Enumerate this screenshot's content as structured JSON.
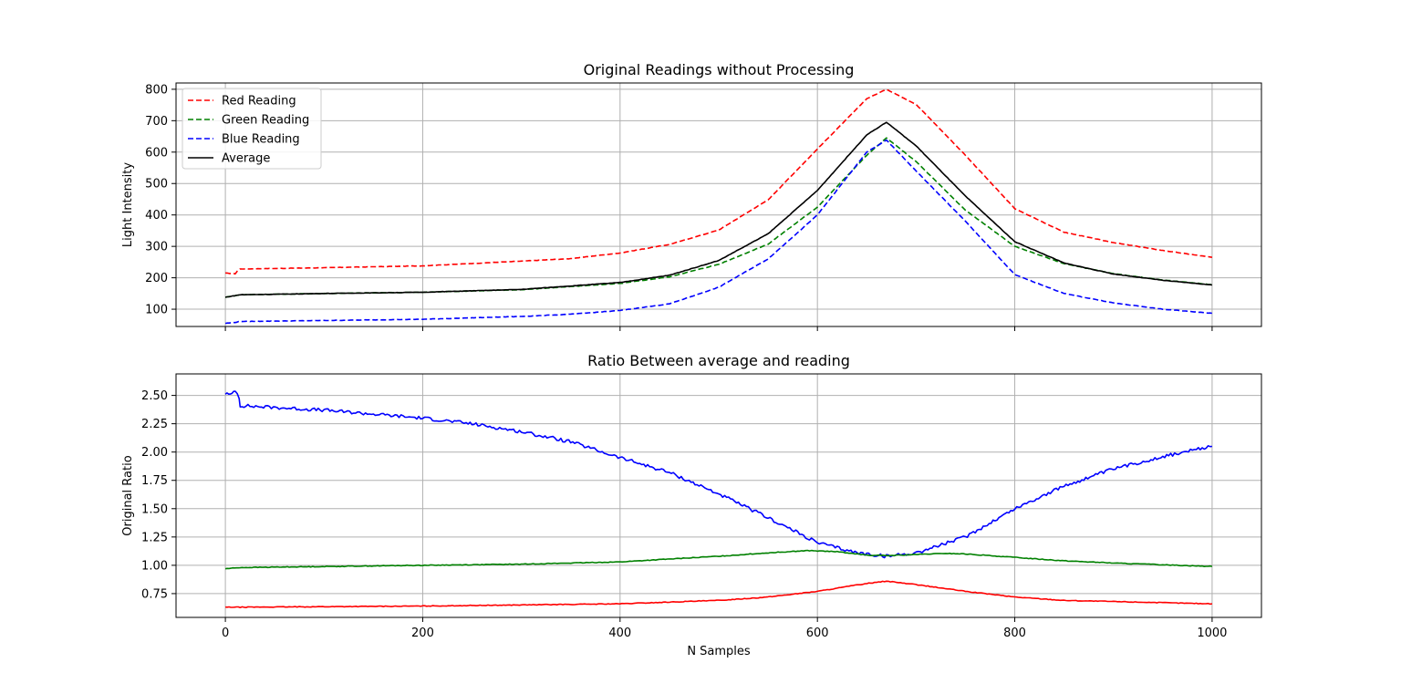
{
  "chart_data": [
    {
      "type": "line",
      "title": "Original Readings without Processing",
      "xlabel": "",
      "ylabel": "Light Intensity",
      "xlim": [
        -50,
        1050
      ],
      "ylim": [
        45,
        820
      ],
      "xticks": [
        0,
        200,
        400,
        600,
        800,
        1000
      ],
      "xtick_labels_visible": false,
      "yticks": [
        100,
        200,
        300,
        400,
        500,
        600,
        700,
        800
      ],
      "grid": true,
      "legend": "top-left",
      "series": [
        {
          "name": "Red Reading",
          "color": "#ff0000",
          "style": "dashed",
          "points": [
            [
              0,
              215
            ],
            [
              10,
              213
            ],
            [
              12,
              221
            ],
            [
              15,
              228
            ],
            [
              100,
              232
            ],
            [
              200,
              238
            ],
            [
              300,
              253
            ],
            [
              350,
              261
            ],
            [
              400,
              279
            ],
            [
              450,
              306
            ],
            [
              500,
              352
            ],
            [
              550,
              448
            ],
            [
              600,
              610
            ],
            [
              650,
              770
            ],
            [
              670,
              800
            ],
            [
              700,
              752
            ],
            [
              750,
              590
            ],
            [
              800,
              420
            ],
            [
              850,
              345
            ],
            [
              900,
              312
            ],
            [
              950,
              287
            ],
            [
              1000,
              265
            ]
          ]
        },
        {
          "name": "Green Reading",
          "color": "#008000",
          "style": "dashed",
          "points": [
            [
              0,
              138
            ],
            [
              15,
              146
            ],
            [
              100,
              150
            ],
            [
              200,
              154
            ],
            [
              300,
              162
            ],
            [
              400,
              182
            ],
            [
              450,
              203
            ],
            [
              500,
              243
            ],
            [
              550,
              307
            ],
            [
              600,
              425
            ],
            [
              650,
              590
            ],
            [
              670,
              645
            ],
            [
              700,
              570
            ],
            [
              750,
              415
            ],
            [
              800,
              300
            ],
            [
              850,
              245
            ],
            [
              900,
              213
            ],
            [
              950,
              193
            ],
            [
              1000,
              178
            ]
          ]
        },
        {
          "name": "Blue Reading",
          "color": "#0000ff",
          "style": "dashed",
          "points": [
            [
              0,
              55
            ],
            [
              10,
              58
            ],
            [
              15,
              61
            ],
            [
              100,
              64
            ],
            [
              200,
              68
            ],
            [
              300,
              77
            ],
            [
              350,
              84
            ],
            [
              400,
              96
            ],
            [
              450,
              117
            ],
            [
              500,
              170
            ],
            [
              550,
              260
            ],
            [
              600,
              400
            ],
            [
              650,
              600
            ],
            [
              670,
              638
            ],
            [
              700,
              540
            ],
            [
              750,
              380
            ],
            [
              800,
              210
            ],
            [
              850,
              150
            ],
            [
              900,
              120
            ],
            [
              950,
              100
            ],
            [
              1000,
              87
            ]
          ]
        },
        {
          "name": "Average",
          "color": "#000000",
          "style": "solid",
          "points": [
            [
              0,
              138
            ],
            [
              15,
              146
            ],
            [
              100,
              150
            ],
            [
              200,
              154
            ],
            [
              300,
              163
            ],
            [
              400,
              185
            ],
            [
              450,
              208
            ],
            [
              500,
              255
            ],
            [
              550,
              340
            ],
            [
              600,
              478
            ],
            [
              650,
              655
            ],
            [
              670,
              695
            ],
            [
              700,
              620
            ],
            [
              750,
              460
            ],
            [
              800,
              315
            ],
            [
              850,
              247
            ],
            [
              900,
              212
            ],
            [
              950,
              192
            ],
            [
              1000,
              177
            ]
          ]
        }
      ]
    },
    {
      "type": "line",
      "title": "Ratio Between average and reading",
      "xlabel": "N Samples",
      "ylabel": "Original Ratio",
      "xlim": [
        -50,
        1050
      ],
      "ylim": [
        0.54,
        2.69
      ],
      "xticks": [
        0,
        200,
        400,
        600,
        800,
        1000
      ],
      "xtick_labels": [
        "0",
        "200",
        "400",
        "600",
        "800",
        "1000"
      ],
      "yticks": [
        0.75,
        1.0,
        1.25,
        1.5,
        1.75,
        2.0,
        2.25,
        2.5
      ],
      "ytick_labels": [
        "0.75",
        "1.00",
        "1.25",
        "1.50",
        "1.75",
        "2.00",
        "2.25",
        "2.50"
      ],
      "grid": true,
      "series": [
        {
          "color": "#0000ff",
          "style": "solid",
          "points": [
            [
              0,
              2.52
            ],
            [
              5,
              2.5
            ],
            [
              10,
              2.55
            ],
            [
              14,
              2.48
            ],
            [
              15,
              2.41
            ],
            [
              100,
              2.37
            ],
            [
              200,
              2.3
            ],
            [
              250,
              2.25
            ],
            [
              300,
              2.18
            ],
            [
              350,
              2.09
            ],
            [
              400,
              1.95
            ],
            [
              450,
              1.82
            ],
            [
              500,
              1.63
            ],
            [
              550,
              1.42
            ],
            [
              600,
              1.2
            ],
            [
              640,
              1.11
            ],
            [
              670,
              1.08
            ],
            [
              700,
              1.11
            ],
            [
              750,
              1.25
            ],
            [
              800,
              1.5
            ],
            [
              850,
              1.7
            ],
            [
              900,
              1.85
            ],
            [
              950,
              1.96
            ],
            [
              1000,
              2.05
            ]
          ]
        },
        {
          "color": "#008000",
          "style": "solid",
          "points": [
            [
              0,
              0.97
            ],
            [
              15,
              0.98
            ],
            [
              200,
              1.0
            ],
            [
              300,
              1.01
            ],
            [
              400,
              1.03
            ],
            [
              500,
              1.08
            ],
            [
              550,
              1.11
            ],
            [
              590,
              1.13
            ],
            [
              620,
              1.12
            ],
            [
              650,
              1.09
            ],
            [
              670,
              1.085
            ],
            [
              700,
              1.095
            ],
            [
              730,
              1.105
            ],
            [
              750,
              1.1
            ],
            [
              800,
              1.07
            ],
            [
              850,
              1.04
            ],
            [
              900,
              1.02
            ],
            [
              1000,
              0.99
            ]
          ]
        },
        {
          "color": "#ff0000",
          "style": "solid",
          "points": [
            [
              0,
              0.63
            ],
            [
              15,
              0.63
            ],
            [
              200,
              0.64
            ],
            [
              300,
              0.65
            ],
            [
              400,
              0.66
            ],
            [
              500,
              0.69
            ],
            [
              550,
              0.72
            ],
            [
              600,
              0.77
            ],
            [
              650,
              0.84
            ],
            [
              670,
              0.86
            ],
            [
              700,
              0.83
            ],
            [
              750,
              0.77
            ],
            [
              800,
              0.72
            ],
            [
              850,
              0.69
            ],
            [
              900,
              0.68
            ],
            [
              1000,
              0.66
            ]
          ]
        }
      ]
    }
  ]
}
